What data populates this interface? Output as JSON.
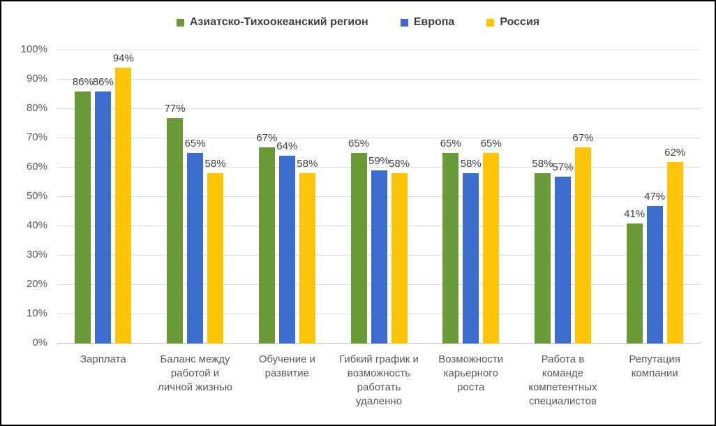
{
  "chart_data": {
    "type": "bar",
    "title": "",
    "xlabel": "",
    "ylabel": "",
    "grid": true,
    "legend_position": "top",
    "ylim": [
      0,
      100
    ],
    "ytick_step": 10,
    "ytick_labels": [
      "0%",
      "10%",
      "20%",
      "30%",
      "40%",
      "50%",
      "60%",
      "70%",
      "80%",
      "90%",
      "100%"
    ],
    "data_label_suffix": "%",
    "categories": [
      "Зарплата",
      "Баланс между работой и личной жизнью",
      "Обучение и развитие",
      "Гибкий график и возможность работать удаленно",
      "Возможности карьерного роста",
      "Работа в команде компетентных специалистов",
      "Репутация компании"
    ],
    "series": [
      {
        "name": "Азиатско-Тихоокеанский регион",
        "color": "#6A9A38",
        "values": [
          86,
          77,
          67,
          65,
          65,
          58,
          41
        ]
      },
      {
        "name": "Европа",
        "color": "#3C6CCE",
        "values": [
          86,
          65,
          64,
          59,
          58,
          57,
          47
        ]
      },
      {
        "name": "Россия",
        "color": "#FDC408",
        "values": [
          94,
          58,
          58,
          58,
          65,
          67,
          62
        ]
      }
    ]
  },
  "colors": {
    "gridline": "#dadde2",
    "axis_baseline": "#c3c6cc",
    "tick_text": "#595959",
    "data_label_text": "#404040",
    "legend_text": "#404040",
    "background": "#ffffff",
    "frame_border": "#000000"
  }
}
